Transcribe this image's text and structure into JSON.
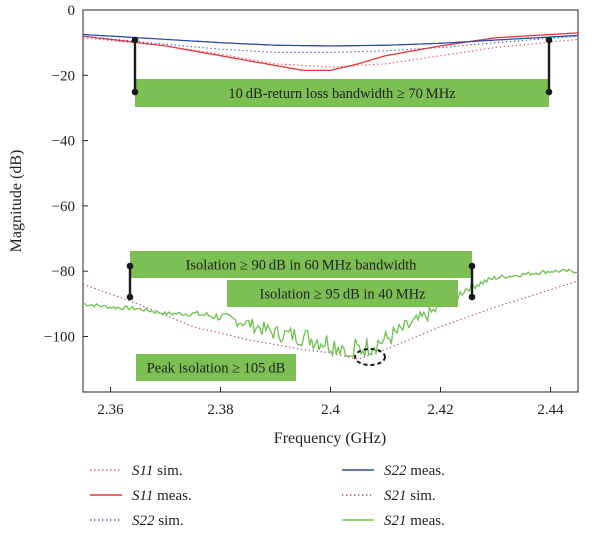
{
  "chart_data": {
    "type": "line",
    "xlabel": "Frequency (GHz)",
    "ylabel": "Magnitude (dB)",
    "xlim": [
      2.355,
      2.445
    ],
    "ylim": [
      -117,
      0
    ],
    "xticks": [
      "2.36",
      "2.38",
      "2.4",
      "2.42",
      "2.44"
    ],
    "yticks": [
      "0",
      "−20",
      "−40",
      "−60",
      "−80",
      "−100"
    ],
    "grid": false,
    "colors": {
      "S11_sim": "#e8545a",
      "S11_meas": "#e8343a",
      "S22_sim": "#4a5ea8",
      "S22_meas": "#2e4aa8",
      "S21_sim": "#b24a8c",
      "S21_meas": "#6cc24a",
      "annotation_fill": "#7cbf52",
      "marker": "#1a1a1a"
    },
    "series": [
      {
        "name": "S11 sim.",
        "style": "dotted",
        "colorKey": "S11_sim",
        "x": [
          2.355,
          2.37,
          2.38,
          2.39,
          2.4,
          2.41,
          2.42,
          2.43,
          2.445
        ],
        "y": [
          -8.5,
          -11,
          -13.5,
          -16.5,
          -17.5,
          -16.5,
          -14,
          -11.5,
          -9
        ]
      },
      {
        "name": "S11 meas.",
        "style": "solid",
        "colorKey": "S11_meas",
        "x": [
          2.355,
          2.36,
          2.37,
          2.38,
          2.39,
          2.395,
          2.4,
          2.405,
          2.41,
          2.42,
          2.43,
          2.445
        ],
        "y": [
          -8,
          -9,
          -11,
          -14,
          -17,
          -18.5,
          -18.5,
          -16.5,
          -14,
          -11,
          -8.5,
          -7
        ]
      },
      {
        "name": "S22 sim.",
        "style": "dotted",
        "colorKey": "S22_sim",
        "x": [
          2.355,
          2.37,
          2.38,
          2.39,
          2.4,
          2.41,
          2.42,
          2.43,
          2.445
        ],
        "y": [
          -8,
          -10.5,
          -12,
          -13,
          -13,
          -12.5,
          -11.5,
          -10,
          -8
        ]
      },
      {
        "name": "S22 meas.",
        "style": "solid",
        "colorKey": "S22_meas",
        "x": [
          2.355,
          2.37,
          2.38,
          2.39,
          2.4,
          2.41,
          2.42,
          2.43,
          2.445
        ],
        "y": [
          -7.5,
          -9,
          -10,
          -10.8,
          -11,
          -10.8,
          -10.2,
          -9.2,
          -7.8
        ]
      },
      {
        "name": "S21 sim.",
        "style": "dotted",
        "colorKey": "S21_sim",
        "x": [
          2.355,
          2.365,
          2.375,
          2.385,
          2.395,
          2.4,
          2.405,
          2.41,
          2.42,
          2.43,
          2.445
        ],
        "y": [
          -84,
          -90,
          -97,
          -101,
          -104,
          -105,
          -107,
          -104,
          -97,
          -91,
          -83
        ]
      },
      {
        "name": "S21 meas.",
        "style": "solid",
        "colorKey": "S21_meas",
        "x": [
          2.355,
          2.36,
          2.365,
          2.37,
          2.375,
          2.38,
          2.385,
          2.39,
          2.395,
          2.4,
          2.403,
          2.405,
          2.41,
          2.415,
          2.42,
          2.425,
          2.43,
          2.435,
          2.44,
          2.445
        ],
        "y": [
          -90,
          -91,
          -91.5,
          -93,
          -93,
          -94,
          -96,
          -99,
          -100,
          -102,
          -103,
          -104,
          -101,
          -96,
          -91,
          -85,
          -82,
          -81,
          -80,
          -80
        ]
      }
    ],
    "annotations": [
      "10 dB-return loss bandwidth ≥ 70 MHz",
      "Isolation ≥ 90 dB in 60 MHz bandwidth",
      "Isolation ≥ 95 dB in 40 MHz",
      "Peak isolation ≥ 105 dB"
    ],
    "legend_position": "bottom",
    "legend": [
      {
        "label": "S11 sim.",
        "key": "S11_sim",
        "style": "dotted"
      },
      {
        "label": "S22 meas.",
        "key": "S22_meas",
        "style": "solid"
      },
      {
        "label": "S11 meas.",
        "key": "S11_meas",
        "style": "solid"
      },
      {
        "label": "S21 sim.",
        "key": "S21_sim",
        "style": "dotted"
      },
      {
        "label": "S22 sim.",
        "key": "S22_sim",
        "style": "dotted"
      },
      {
        "label": "S21 meas.",
        "key": "S21_meas",
        "style": "solid"
      }
    ]
  }
}
